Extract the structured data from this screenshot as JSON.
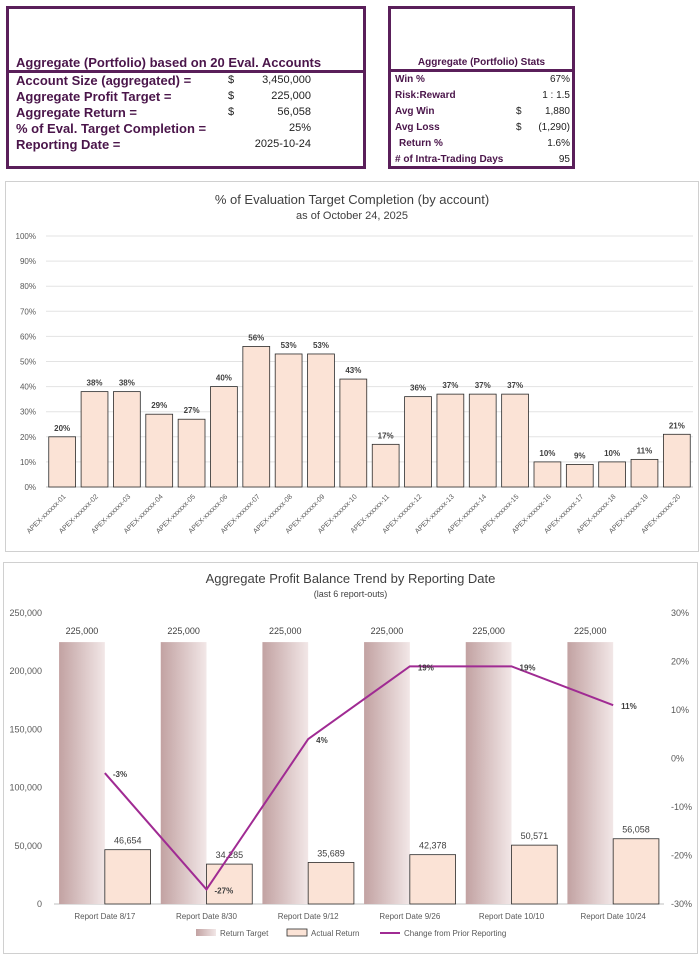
{
  "summary": {
    "title": "Aggregate (Portfolio) based on 20 Eval. Accounts",
    "rows": [
      {
        "label": "Account Size (aggregated) =",
        "currency": "$",
        "value": "3,450,000"
      },
      {
        "label": "Aggregate Profit Target =",
        "currency": "$",
        "value": "225,000"
      },
      {
        "label": "Aggregate Return =",
        "currency": "$",
        "value": "56,058"
      },
      {
        "label": "% of Eval. Target Completion =",
        "currency": "",
        "value": "25%"
      },
      {
        "label": "Reporting Date =",
        "currency": "",
        "value": "2025-10-24"
      }
    ]
  },
  "stats": {
    "title": "Aggregate (Portfolio) Stats",
    "rows": [
      {
        "label": "Win %",
        "currency": "",
        "value": "67%"
      },
      {
        "label": "Risk:Reward",
        "currency": "",
        "value": "1 : 1.5"
      },
      {
        "label": "Avg Win",
        "currency": "$",
        "value": "1,880"
      },
      {
        "label": "Avg Loss",
        "currency": "$",
        "value": "(1,290)"
      },
      {
        "label": " Return %",
        "currency": "",
        "value": "1.6%"
      },
      {
        "label": "# of Intra-Trading Days",
        "currency": "",
        "value": "95"
      }
    ]
  },
  "colors": {
    "accent": "#5a1f5a",
    "bar_fill": "#fbe3d6",
    "bar_stroke": "#2b2b2b",
    "line": "#a02b93"
  },
  "chart_data": [
    {
      "type": "bar",
      "title": "% of Evaluation Target Completion (by account)",
      "subtitle": "as of October 24, 2025",
      "categories": [
        "APEX-xxxxxx-01",
        "APEX-xxxxxx-02",
        "APEX-xxxxxx-03",
        "APEX-xxxxxx-04",
        "APEX-xxxxxx-05",
        "APEX-xxxxxx-06",
        "APEX-xxxxxx-07",
        "APEX-xxxxxx-08",
        "APEX-xxxxxx-09",
        "APEX-xxxxxx-10",
        "APEX-xxxxxx-11",
        "APEX-xxxxxx-12",
        "APEX-xxxxxx-13",
        "APEX-xxxxxx-14",
        "APEX-xxxxxx-15",
        "APEX-xxxxxx-16",
        "APEX-xxxxxx-17",
        "APEX-xxxxxx-18",
        "APEX-xxxxxx-19",
        "APEX-xxxxxx-20"
      ],
      "values": [
        20,
        38,
        38,
        29,
        27,
        40,
        56,
        53,
        53,
        43,
        17,
        36,
        37,
        37,
        37,
        10,
        9,
        10,
        11,
        21
      ],
      "labels": [
        "20%",
        "38%",
        "38%",
        "29%",
        "27%",
        "40%",
        "56%",
        "53%",
        "53%",
        "43%",
        "17%",
        "36%",
        "37%",
        "37%",
        "37%",
        "10%",
        "9%",
        "10%",
        "11%",
        "21%"
      ],
      "yticks": [
        "0%",
        "10%",
        "20%",
        "30%",
        "40%",
        "50%",
        "60%",
        "70%",
        "80%",
        "90%",
        "100%"
      ],
      "ylim": [
        0,
        100
      ],
      "grid": true,
      "legend": "none"
    },
    {
      "type": "bar",
      "title": "Aggregate Profit Balance Trend by Reporting Date",
      "subtitle": "(last 6 report-outs)",
      "categories": [
        "Report Date 8/17",
        "Report Date 8/30",
        "Report Date 9/12",
        "Report Date 9/26",
        "Report Date 10/10",
        "Report Date 10/24"
      ],
      "series": [
        {
          "name": "Return Target",
          "values": [
            225000,
            225000,
            225000,
            225000,
            225000,
            225000
          ],
          "labels": [
            "225,000",
            "225,000",
            "225,000",
            "225,000",
            "225,000",
            "225,000"
          ]
        },
        {
          "name": "Actual Return",
          "values": [
            46654,
            34285,
            35689,
            42378,
            50571,
            56058
          ],
          "labels": [
            "46,654",
            "34,285",
            "35,689",
            "42,378",
            "50,571",
            "56,058"
          ]
        },
        {
          "name": "Change from Prior Reporting",
          "axis": "secondary",
          "values": [
            -3,
            -27,
            4,
            19,
            19,
            11
          ],
          "labels": [
            "-3%",
            "-27%",
            "4%",
            "19%",
            "19%",
            "11%"
          ]
        }
      ],
      "yticks_left": [
        "0",
        "50,000",
        "100,000",
        "150,000",
        "200,000",
        "250,000"
      ],
      "ylim_left": [
        0,
        250000
      ],
      "yticks_right": [
        "-30%",
        "-20%",
        "-10%",
        "0%",
        "10%",
        "20%",
        "30%"
      ],
      "ylim_right": [
        -30,
        30
      ],
      "grid": false,
      "legend": "bottom"
    }
  ]
}
